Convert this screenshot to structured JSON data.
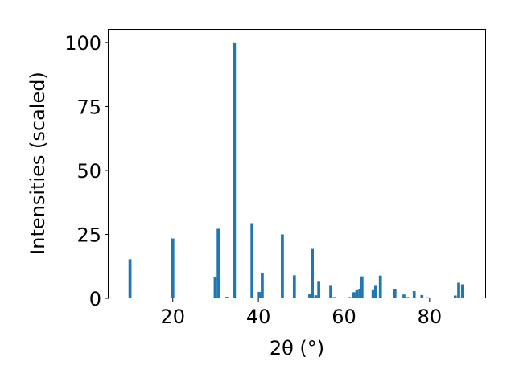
{
  "chart_data": {
    "type": "bar",
    "title": "",
    "xlabel": "2θ (°)",
    "ylabel": "Intensities (scaled)",
    "xlim": [
      5,
      93
    ],
    "ylim": [
      0,
      105
    ],
    "xticks": [
      20,
      40,
      60,
      80
    ],
    "yticks": [
      0,
      25,
      50,
      75,
      100
    ],
    "grid": false,
    "bar_width": 0.7,
    "color": "#1f77b4",
    "points": [
      {
        "x": 10.0,
        "y": 15.3
      },
      {
        "x": 20.0,
        "y": 23.4
      },
      {
        "x": 29.9,
        "y": 8.3
      },
      {
        "x": 30.6,
        "y": 27.2
      },
      {
        "x": 32.6,
        "y": 0.6
      },
      {
        "x": 34.4,
        "y": 100.0
      },
      {
        "x": 38.5,
        "y": 29.4
      },
      {
        "x": 40.2,
        "y": 2.5
      },
      {
        "x": 40.9,
        "y": 9.9
      },
      {
        "x": 45.6,
        "y": 25.0
      },
      {
        "x": 48.4,
        "y": 9.0
      },
      {
        "x": 52.0,
        "y": 1.8
      },
      {
        "x": 52.6,
        "y": 19.3
      },
      {
        "x": 53.4,
        "y": 1.2
      },
      {
        "x": 54.1,
        "y": 6.5
      },
      {
        "x": 56.9,
        "y": 4.9
      },
      {
        "x": 57.7,
        "y": 0.5
      },
      {
        "x": 61.3,
        "y": 0.5
      },
      {
        "x": 62.3,
        "y": 2.4
      },
      {
        "x": 63.0,
        "y": 3.2
      },
      {
        "x": 63.7,
        "y": 3.5
      },
      {
        "x": 64.2,
        "y": 8.6
      },
      {
        "x": 66.8,
        "y": 3.2
      },
      {
        "x": 67.4,
        "y": 4.9
      },
      {
        "x": 68.5,
        "y": 8.9
      },
      {
        "x": 71.9,
        "y": 3.7
      },
      {
        "x": 74.0,
        "y": 1.5
      },
      {
        "x": 74.9,
        "y": 0.5
      },
      {
        "x": 76.4,
        "y": 2.8
      },
      {
        "x": 78.2,
        "y": 1.3
      },
      {
        "x": 79.5,
        "y": 0.4
      },
      {
        "x": 81.8,
        "y": 0.3
      },
      {
        "x": 86.0,
        "y": 1.1
      },
      {
        "x": 86.8,
        "y": 6.1
      },
      {
        "x": 87.7,
        "y": 5.5
      }
    ]
  }
}
